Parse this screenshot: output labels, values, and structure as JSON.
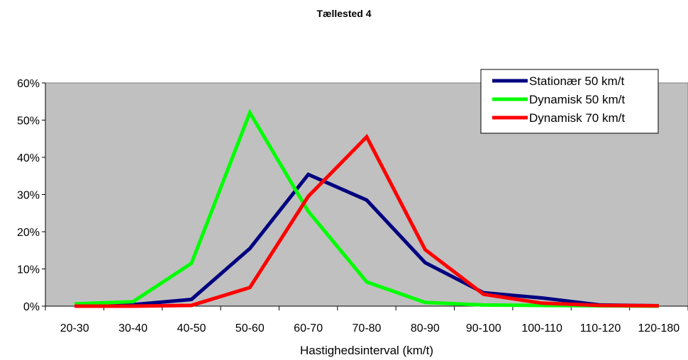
{
  "chart_data": {
    "type": "line",
    "title": "Tællested 4",
    "xlabel": "Hastighedsinterval (km/t)",
    "ylabel": "",
    "categories": [
      "20-30",
      "30-40",
      "40-50",
      "50-60",
      "60-70",
      "70-80",
      "80-90",
      "90-100",
      "100-110",
      "110-120",
      "120-180"
    ],
    "y_ticks": [
      "0%",
      "10%",
      "20%",
      "30%",
      "40%",
      "50%",
      "60%"
    ],
    "ylim": [
      0,
      0.6
    ],
    "grid": false,
    "legend_position": "top-right",
    "plot_background": "#c0c0c0",
    "series": [
      {
        "name": "Stationær 50 km/t",
        "color": "#000080",
        "values": [
          0.0,
          0.004,
          0.018,
          0.155,
          0.354,
          0.285,
          0.117,
          0.036,
          0.022,
          0.003,
          0.001
        ]
      },
      {
        "name": "Dynamisk 50 km/t",
        "color": "#00ff00",
        "values": [
          0.006,
          0.012,
          0.115,
          0.52,
          0.255,
          0.065,
          0.01,
          0.003,
          0.002,
          0.001,
          0.0
        ]
      },
      {
        "name": "Dynamisk 70 km/t",
        "color": "#ff0000",
        "values": [
          0.0,
          0.0,
          0.002,
          0.05,
          0.295,
          0.455,
          0.152,
          0.032,
          0.008,
          0.002,
          0.001
        ]
      }
    ]
  }
}
